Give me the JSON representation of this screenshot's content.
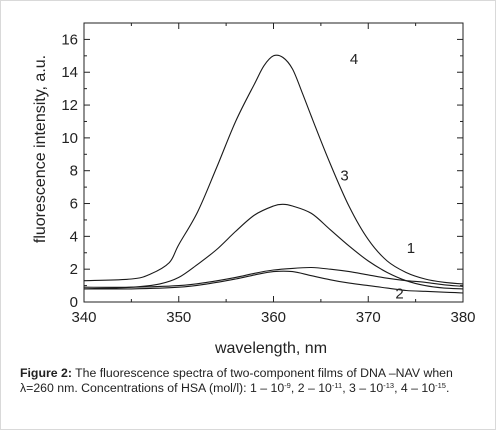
{
  "chart_data": {
    "type": "line",
    "xlabel": "wavelength, nm",
    "ylabel": "fluorescence intensity, a.u.",
    "xlim": [
      340,
      380
    ],
    "ylim": [
      0,
      17
    ],
    "xticks": [
      "340",
      "350",
      "360",
      "370",
      "380"
    ],
    "yticks": [
      "0",
      "2",
      "4",
      "6",
      "8",
      "10",
      "12",
      "14",
      "16"
    ],
    "grid": false,
    "series": [
      {
        "name": "1",
        "x": [
          340,
          345,
          350,
          353,
          356,
          358,
          360,
          362,
          364,
          366,
          368,
          370,
          372,
          374,
          376,
          378,
          380
        ],
        "y": [
          0.9,
          0.9,
          1.0,
          1.2,
          1.5,
          1.75,
          1.95,
          2.05,
          2.1,
          2.0,
          1.85,
          1.65,
          1.45,
          1.3,
          1.2,
          1.05,
          0.95
        ]
      },
      {
        "name": "2",
        "x": [
          340,
          345,
          350,
          353,
          356,
          358,
          360,
          362,
          364,
          366,
          368,
          370,
          372,
          374,
          376,
          378,
          380
        ],
        "y": [
          0.8,
          0.8,
          0.9,
          1.1,
          1.4,
          1.65,
          1.85,
          1.85,
          1.6,
          1.35,
          1.15,
          1.0,
          0.85,
          0.7,
          0.65,
          0.6,
          0.55
        ]
      },
      {
        "name": "3",
        "x": [
          340,
          345,
          348,
          350,
          352,
          354,
          356,
          358,
          360,
          361,
          362,
          364,
          366,
          368,
          370,
          372,
          374,
          376,
          378,
          380
        ],
        "y": [
          0.8,
          0.9,
          1.1,
          1.5,
          2.3,
          3.2,
          4.3,
          5.3,
          5.85,
          5.95,
          5.85,
          5.4,
          4.4,
          3.4,
          2.5,
          1.8,
          1.3,
          1.0,
          0.85,
          0.8
        ]
      },
      {
        "name": "4",
        "x": [
          340,
          345,
          347,
          349,
          350,
          352,
          354,
          356,
          358,
          359,
          360,
          361,
          362,
          363,
          364,
          366,
          368,
          370,
          372,
          374,
          376,
          378,
          380
        ],
        "y": [
          1.3,
          1.4,
          1.7,
          2.4,
          3.5,
          5.5,
          8.2,
          11.0,
          13.3,
          14.4,
          15.0,
          14.9,
          14.2,
          12.8,
          11.3,
          8.4,
          5.8,
          3.8,
          2.5,
          1.8,
          1.4,
          1.2,
          1.1
        ]
      }
    ],
    "annotations": [
      {
        "text": "4",
        "x": 368.5,
        "y": 14.5
      },
      {
        "text": "3",
        "x": 367.5,
        "y": 7.4
      },
      {
        "text": "1",
        "x": 374.5,
        "y": 3.0
      },
      {
        "text": "2",
        "x": 373.3,
        "y": 0.2
      }
    ]
  },
  "caption": {
    "label": "Figure 2:",
    "text1": " The fluorescence spectra of two-component films of DNA –NAV when λ=260 nm. Concentrations of HSA (mol/l): 1 – 10",
    "e1": "-9",
    "text2": ", 2 – 10",
    "e2": "-11",
    "text3": ", 3 – 10",
    "e3": "-13",
    "text4": ", 4 – 10",
    "e4": "-15",
    "text5": "."
  }
}
